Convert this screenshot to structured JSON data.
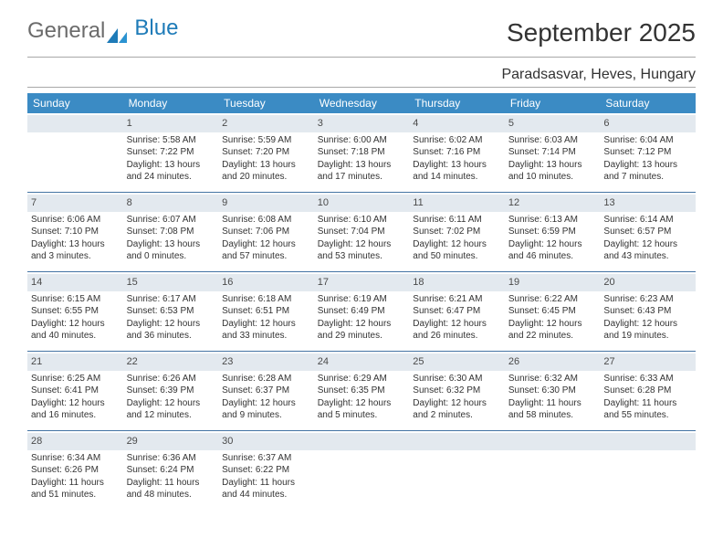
{
  "brand": {
    "part1": "General",
    "part2": "Blue"
  },
  "title": "September 2025",
  "location": "Paradsasvar, Heves, Hungary",
  "colors": {
    "header_bg": "#3b8bc4",
    "header_text": "#ffffff",
    "daynum_bg": "#e3e9ef",
    "week_divider": "#4474a4",
    "text": "#333333"
  },
  "day_headers": [
    "Sunday",
    "Monday",
    "Tuesday",
    "Wednesday",
    "Thursday",
    "Friday",
    "Saturday"
  ],
  "weeks": [
    [
      {
        "num": "",
        "sunrise": "",
        "sunset": "",
        "daylight1": "",
        "daylight2": ""
      },
      {
        "num": "1",
        "sunrise": "Sunrise: 5:58 AM",
        "sunset": "Sunset: 7:22 PM",
        "daylight1": "Daylight: 13 hours",
        "daylight2": "and 24 minutes."
      },
      {
        "num": "2",
        "sunrise": "Sunrise: 5:59 AM",
        "sunset": "Sunset: 7:20 PM",
        "daylight1": "Daylight: 13 hours",
        "daylight2": "and 20 minutes."
      },
      {
        "num": "3",
        "sunrise": "Sunrise: 6:00 AM",
        "sunset": "Sunset: 7:18 PM",
        "daylight1": "Daylight: 13 hours",
        "daylight2": "and 17 minutes."
      },
      {
        "num": "4",
        "sunrise": "Sunrise: 6:02 AM",
        "sunset": "Sunset: 7:16 PM",
        "daylight1": "Daylight: 13 hours",
        "daylight2": "and 14 minutes."
      },
      {
        "num": "5",
        "sunrise": "Sunrise: 6:03 AM",
        "sunset": "Sunset: 7:14 PM",
        "daylight1": "Daylight: 13 hours",
        "daylight2": "and 10 minutes."
      },
      {
        "num": "6",
        "sunrise": "Sunrise: 6:04 AM",
        "sunset": "Sunset: 7:12 PM",
        "daylight1": "Daylight: 13 hours",
        "daylight2": "and 7 minutes."
      }
    ],
    [
      {
        "num": "7",
        "sunrise": "Sunrise: 6:06 AM",
        "sunset": "Sunset: 7:10 PM",
        "daylight1": "Daylight: 13 hours",
        "daylight2": "and 3 minutes."
      },
      {
        "num": "8",
        "sunrise": "Sunrise: 6:07 AM",
        "sunset": "Sunset: 7:08 PM",
        "daylight1": "Daylight: 13 hours",
        "daylight2": "and 0 minutes."
      },
      {
        "num": "9",
        "sunrise": "Sunrise: 6:08 AM",
        "sunset": "Sunset: 7:06 PM",
        "daylight1": "Daylight: 12 hours",
        "daylight2": "and 57 minutes."
      },
      {
        "num": "10",
        "sunrise": "Sunrise: 6:10 AM",
        "sunset": "Sunset: 7:04 PM",
        "daylight1": "Daylight: 12 hours",
        "daylight2": "and 53 minutes."
      },
      {
        "num": "11",
        "sunrise": "Sunrise: 6:11 AM",
        "sunset": "Sunset: 7:02 PM",
        "daylight1": "Daylight: 12 hours",
        "daylight2": "and 50 minutes."
      },
      {
        "num": "12",
        "sunrise": "Sunrise: 6:13 AM",
        "sunset": "Sunset: 6:59 PM",
        "daylight1": "Daylight: 12 hours",
        "daylight2": "and 46 minutes."
      },
      {
        "num": "13",
        "sunrise": "Sunrise: 6:14 AM",
        "sunset": "Sunset: 6:57 PM",
        "daylight1": "Daylight: 12 hours",
        "daylight2": "and 43 minutes."
      }
    ],
    [
      {
        "num": "14",
        "sunrise": "Sunrise: 6:15 AM",
        "sunset": "Sunset: 6:55 PM",
        "daylight1": "Daylight: 12 hours",
        "daylight2": "and 40 minutes."
      },
      {
        "num": "15",
        "sunrise": "Sunrise: 6:17 AM",
        "sunset": "Sunset: 6:53 PM",
        "daylight1": "Daylight: 12 hours",
        "daylight2": "and 36 minutes."
      },
      {
        "num": "16",
        "sunrise": "Sunrise: 6:18 AM",
        "sunset": "Sunset: 6:51 PM",
        "daylight1": "Daylight: 12 hours",
        "daylight2": "and 33 minutes."
      },
      {
        "num": "17",
        "sunrise": "Sunrise: 6:19 AM",
        "sunset": "Sunset: 6:49 PM",
        "daylight1": "Daylight: 12 hours",
        "daylight2": "and 29 minutes."
      },
      {
        "num": "18",
        "sunrise": "Sunrise: 6:21 AM",
        "sunset": "Sunset: 6:47 PM",
        "daylight1": "Daylight: 12 hours",
        "daylight2": "and 26 minutes."
      },
      {
        "num": "19",
        "sunrise": "Sunrise: 6:22 AM",
        "sunset": "Sunset: 6:45 PM",
        "daylight1": "Daylight: 12 hours",
        "daylight2": "and 22 minutes."
      },
      {
        "num": "20",
        "sunrise": "Sunrise: 6:23 AM",
        "sunset": "Sunset: 6:43 PM",
        "daylight1": "Daylight: 12 hours",
        "daylight2": "and 19 minutes."
      }
    ],
    [
      {
        "num": "21",
        "sunrise": "Sunrise: 6:25 AM",
        "sunset": "Sunset: 6:41 PM",
        "daylight1": "Daylight: 12 hours",
        "daylight2": "and 16 minutes."
      },
      {
        "num": "22",
        "sunrise": "Sunrise: 6:26 AM",
        "sunset": "Sunset: 6:39 PM",
        "daylight1": "Daylight: 12 hours",
        "daylight2": "and 12 minutes."
      },
      {
        "num": "23",
        "sunrise": "Sunrise: 6:28 AM",
        "sunset": "Sunset: 6:37 PM",
        "daylight1": "Daylight: 12 hours",
        "daylight2": "and 9 minutes."
      },
      {
        "num": "24",
        "sunrise": "Sunrise: 6:29 AM",
        "sunset": "Sunset: 6:35 PM",
        "daylight1": "Daylight: 12 hours",
        "daylight2": "and 5 minutes."
      },
      {
        "num": "25",
        "sunrise": "Sunrise: 6:30 AM",
        "sunset": "Sunset: 6:32 PM",
        "daylight1": "Daylight: 12 hours",
        "daylight2": "and 2 minutes."
      },
      {
        "num": "26",
        "sunrise": "Sunrise: 6:32 AM",
        "sunset": "Sunset: 6:30 PM",
        "daylight1": "Daylight: 11 hours",
        "daylight2": "and 58 minutes."
      },
      {
        "num": "27",
        "sunrise": "Sunrise: 6:33 AM",
        "sunset": "Sunset: 6:28 PM",
        "daylight1": "Daylight: 11 hours",
        "daylight2": "and 55 minutes."
      }
    ],
    [
      {
        "num": "28",
        "sunrise": "Sunrise: 6:34 AM",
        "sunset": "Sunset: 6:26 PM",
        "daylight1": "Daylight: 11 hours",
        "daylight2": "and 51 minutes."
      },
      {
        "num": "29",
        "sunrise": "Sunrise: 6:36 AM",
        "sunset": "Sunset: 6:24 PM",
        "daylight1": "Daylight: 11 hours",
        "daylight2": "and 48 minutes."
      },
      {
        "num": "30",
        "sunrise": "Sunrise: 6:37 AM",
        "sunset": "Sunset: 6:22 PM",
        "daylight1": "Daylight: 11 hours",
        "daylight2": "and 44 minutes."
      },
      {
        "num": "",
        "sunrise": "",
        "sunset": "",
        "daylight1": "",
        "daylight2": ""
      },
      {
        "num": "",
        "sunrise": "",
        "sunset": "",
        "daylight1": "",
        "daylight2": ""
      },
      {
        "num": "",
        "sunrise": "",
        "sunset": "",
        "daylight1": "",
        "daylight2": ""
      },
      {
        "num": "",
        "sunrise": "",
        "sunset": "",
        "daylight1": "",
        "daylight2": ""
      }
    ]
  ]
}
